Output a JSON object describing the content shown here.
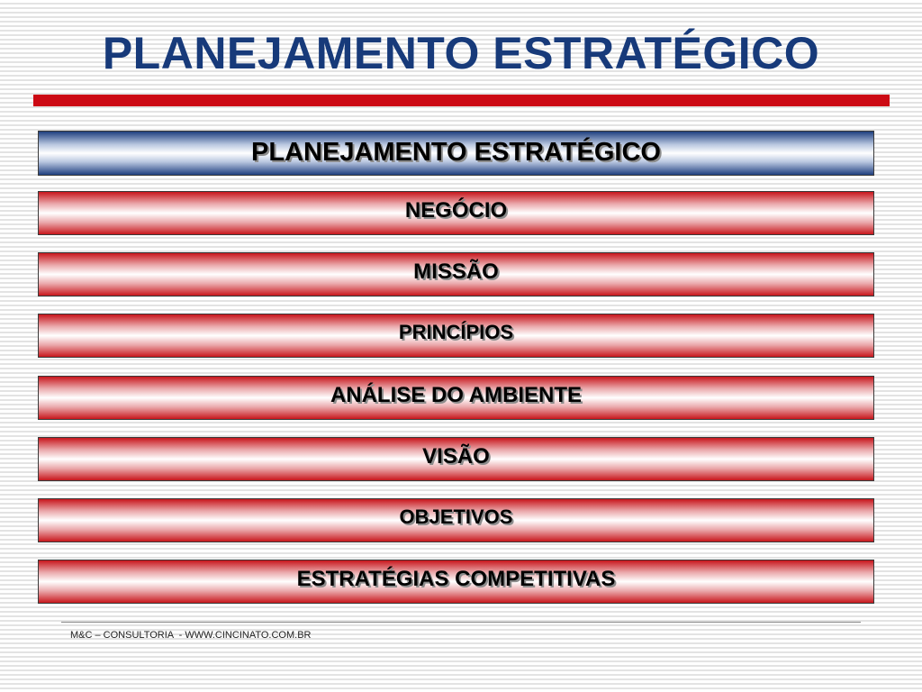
{
  "slide": {
    "title": "PLANEJAMENTO ESTRATÉGICO"
  },
  "diagram": {
    "header_box": "PLANEJAMENTO ESTRATÉGICO",
    "steps": [
      "NEGÓCIO",
      "MISSÃO",
      "PRINCÍPIOS",
      "ANÁLISE DO AMBIENTE",
      "VISÃO",
      "OBJETIVOS",
      "ESTRATÉGIAS COMPETITIVAS"
    ]
  },
  "footer": {
    "text": "M&C – CONSULTORIA  - WWW.CINCINATO.COM.BR"
  },
  "colors": {
    "title": "#173a7a",
    "accent_rule": "#cc0a14",
    "header_gradient_edge": "#1f3f7f",
    "step_gradient_edge": "#c8171d"
  }
}
